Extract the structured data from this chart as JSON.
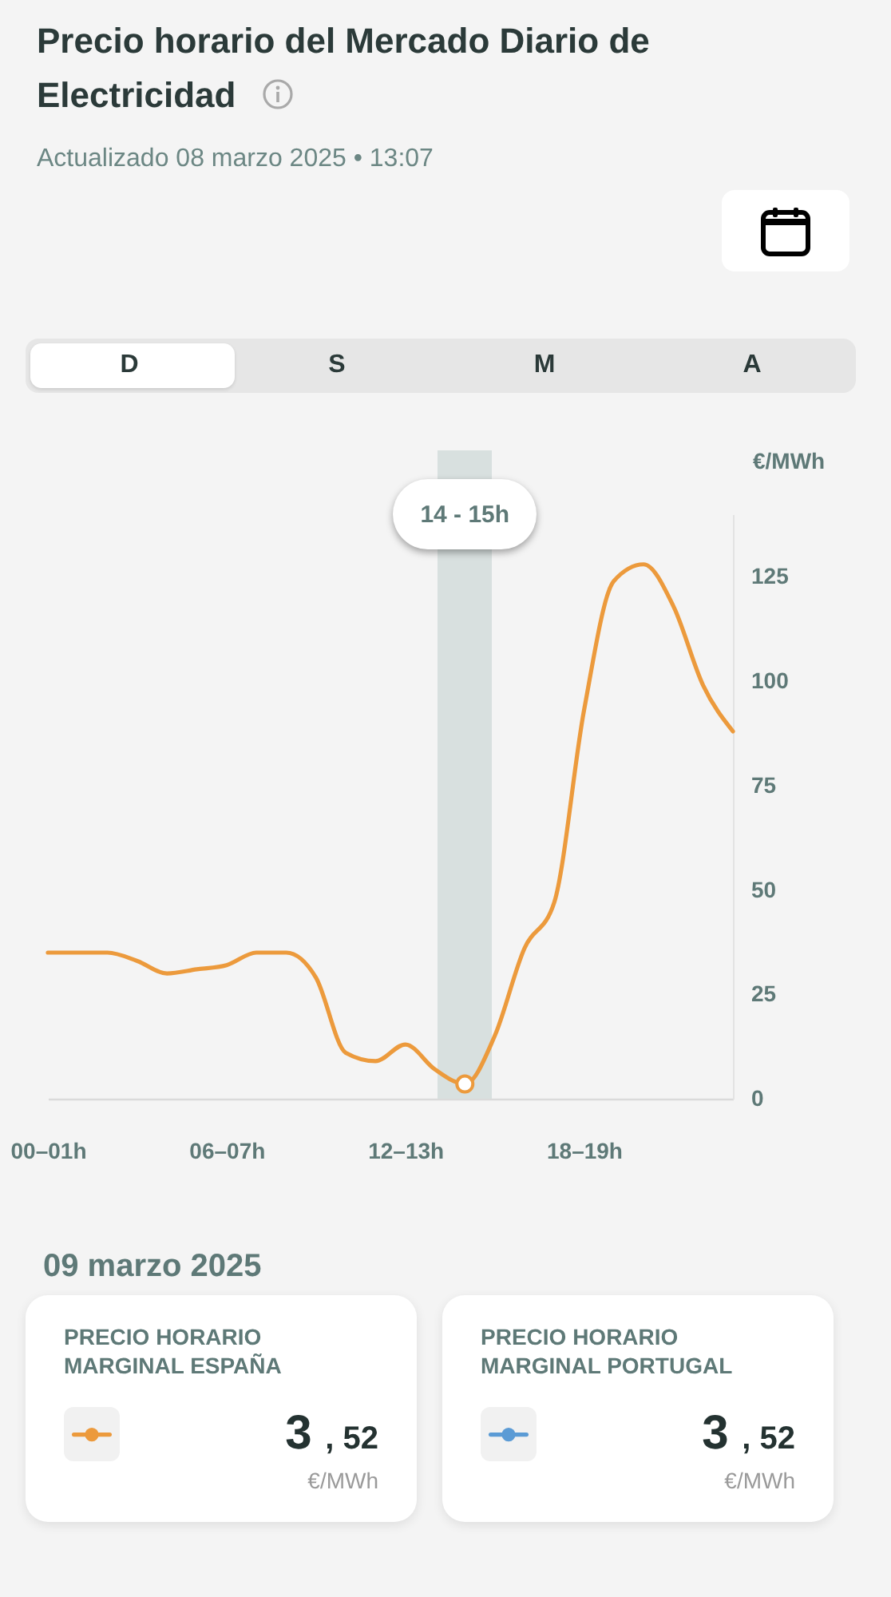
{
  "chart_data": [
    {
      "type": "line",
      "title": "Precio horario del Mercado Diario de Electricidad",
      "subtitle": "Actualizado 08 marzo 2025 • 13:07",
      "ylabel": "€/MWh",
      "categories": [
        "00–01h",
        null,
        null,
        null,
        null,
        null,
        "06–07h",
        null,
        null,
        null,
        null,
        null,
        "12–13h",
        null,
        null,
        null,
        null,
        null,
        "18–19h",
        null,
        null,
        null,
        null,
        null
      ],
      "ylim": [
        0,
        140
      ],
      "yticks": [
        0,
        25,
        50,
        75,
        100,
        125
      ],
      "series": [
        {
          "type": "line",
          "color": "#ec9a3c",
          "values": [
            35,
            35,
            35,
            33,
            30,
            31,
            32,
            35,
            35,
            29,
            11,
            9,
            13,
            7,
            3.52,
            15,
            36,
            47,
            93,
            124,
            128,
            118,
            99,
            88
          ]
        },
        {
          "type": "scatter",
          "color": "#ec9a3c",
          "marker": "circle",
          "values": [
            null,
            null,
            null,
            null,
            null,
            null,
            null,
            null,
            null,
            null,
            null,
            null,
            null,
            null,
            3.52,
            null,
            null,
            null,
            null,
            null,
            null,
            null,
            null,
            null
          ]
        }
      ],
      "annotations": [
        "D",
        "S",
        "M",
        "A",
        "14 - 15h"
      ]
    },
    {
      "type": "other",
      "title": "09 marzo 2025",
      "colors": [
        "#ec9a3c",
        "#5b9bd5"
      ],
      "annotations": [
        "PRECIO HORARIO MARGINAL ESPAÑA",
        "3 , 52",
        "€/MWh",
        "PRECIO HORARIO MARGINAL PORTUGAL",
        "3 , 52",
        "€/MWh"
      ]
    }
  ]
}
